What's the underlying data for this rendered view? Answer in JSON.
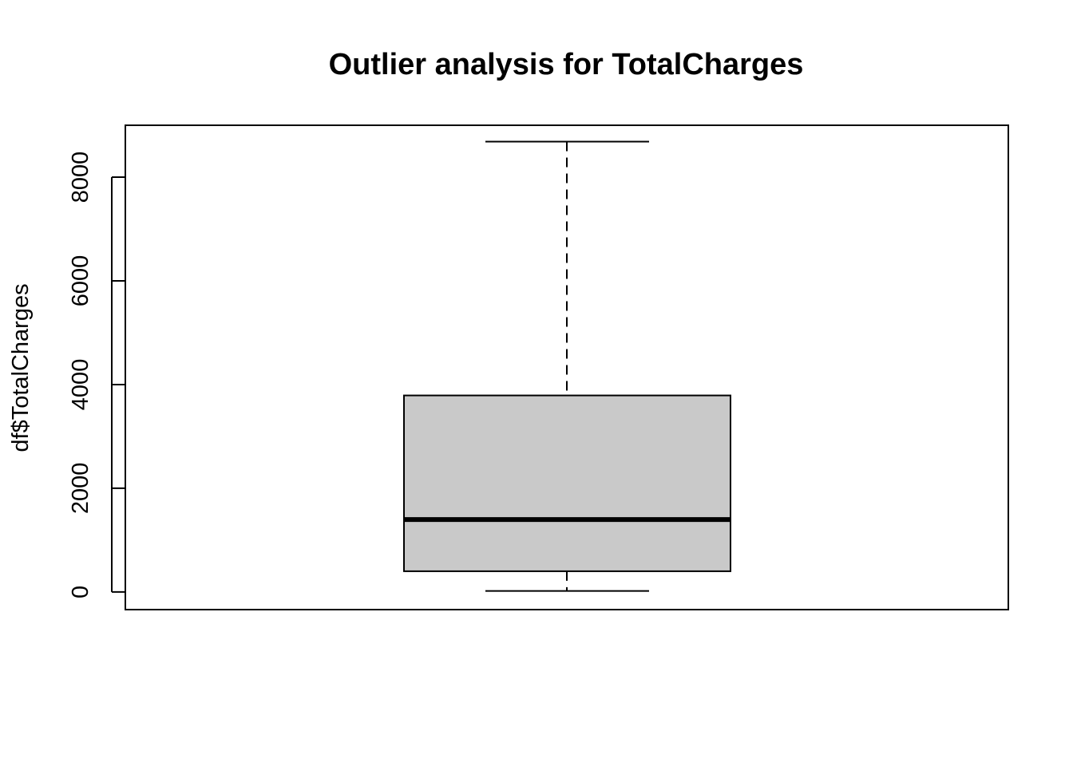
{
  "chart_data": {
    "type": "box",
    "title": "Outlier analysis for TotalCharges",
    "ylabel": "df$TotalCharges",
    "xlabel": "",
    "ylim": [
      -340,
      9000
    ],
    "yticks": [
      0,
      2000,
      4000,
      6000,
      8000
    ],
    "ytick_labels": [
      "0",
      "2000",
      "4000",
      "6000",
      "8000"
    ],
    "box": {
      "min": 19,
      "q1": 400,
      "median": 1397,
      "q3": 3790,
      "max": 8685
    },
    "box_fill": "#c9c9c9",
    "line_color": "#000000",
    "grid": false,
    "legend": "none"
  }
}
